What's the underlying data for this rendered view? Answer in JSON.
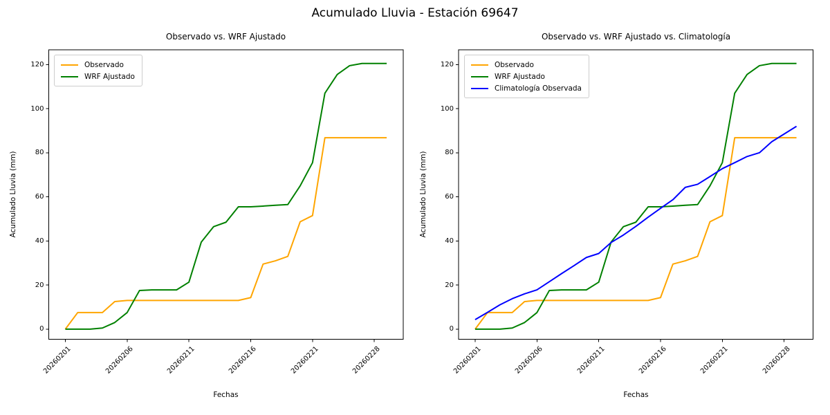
{
  "figure": {
    "title": "Acumulado Lluvia - Estación 69647"
  },
  "chart_data": [
    {
      "type": "line",
      "title": "Observado vs. WRF Ajustado",
      "xlabel": "Fechas",
      "ylabel": "Acumulado Lluvia (mm)",
      "xtick_positions": [
        0,
        5,
        10,
        15,
        20,
        25
      ],
      "xtick_labels": [
        "20260201",
        "20260206",
        "20260211",
        "20260216",
        "20260221",
        "20260228"
      ],
      "yticks": [
        0,
        20,
        40,
        60,
        80,
        100,
        120
      ],
      "xlim": [
        -1.34,
        27.34
      ],
      "ylim": [
        -4.6,
        126.7
      ],
      "grid": false,
      "legend_position": "upper-left",
      "series": [
        {
          "name": "Observado",
          "color": "#ffa500",
          "values": [
            0,
            7.5,
            7.5,
            7.5,
            12.5,
            13,
            13,
            13,
            13,
            13,
            13,
            13,
            13,
            13,
            13,
            14.3,
            29.5,
            31,
            33,
            48.7,
            51.5,
            86.8,
            86.8,
            86.8,
            86.8,
            86.8,
            86.8
          ]
        },
        {
          "name": "WRF Ajustado",
          "color": "#008000",
          "values": [
            0,
            0,
            0,
            0.5,
            3,
            7.5,
            17.5,
            17.8,
            17.8,
            17.8,
            21.3,
            39.5,
            46.5,
            48.5,
            55.5,
            55.5,
            55.8,
            56.2,
            56.5,
            65,
            75.5,
            107,
            115.5,
            119.5,
            120.5,
            120.5,
            120.5
          ]
        }
      ]
    },
    {
      "type": "line",
      "title": "Observado vs. WRF Ajustado vs. Climatología",
      "xlabel": "Fechas",
      "ylabel": "Acumulado Lluvia (mm)",
      "xtick_positions": [
        0,
        5,
        10,
        15,
        20,
        25
      ],
      "xtick_labels": [
        "20260201",
        "20260206",
        "20260211",
        "20260216",
        "20260221",
        "20260228"
      ],
      "yticks": [
        0,
        20,
        40,
        60,
        80,
        100,
        120
      ],
      "xlim": [
        -1.34,
        27.34
      ],
      "ylim": [
        -4.6,
        126.7
      ],
      "grid": false,
      "legend_position": "upper-left",
      "series": [
        {
          "name": "Observado",
          "color": "#ffa500",
          "values": [
            0,
            7.5,
            7.5,
            7.5,
            12.5,
            13,
            13,
            13,
            13,
            13,
            13,
            13,
            13,
            13,
            13,
            14.3,
            29.5,
            31,
            33,
            48.7,
            51.5,
            86.8,
            86.8,
            86.8,
            86.8,
            86.8,
            86.8
          ]
        },
        {
          "name": "WRF Ajustado",
          "color": "#008000",
          "values": [
            0,
            0,
            0,
            0.5,
            3,
            7.5,
            17.5,
            17.8,
            17.8,
            17.8,
            21.3,
            39.5,
            46.5,
            48.5,
            55.5,
            55.5,
            55.8,
            56.2,
            56.5,
            65,
            75.5,
            107,
            115.5,
            119.5,
            120.5,
            120.5,
            120.5
          ]
        },
        {
          "name": "Climatología Observada",
          "color": "#0000ff",
          "values": [
            4.3,
            7.6,
            11,
            13.8,
            16,
            17.8,
            21.5,
            25.2,
            28.8,
            32.5,
            34.3,
            39.3,
            42.7,
            46.6,
            50.8,
            54.8,
            58.7,
            64.3,
            65.7,
            69.2,
            72.8,
            75.5,
            78.3,
            80,
            85,
            88.5,
            92
          ]
        }
      ]
    }
  ]
}
